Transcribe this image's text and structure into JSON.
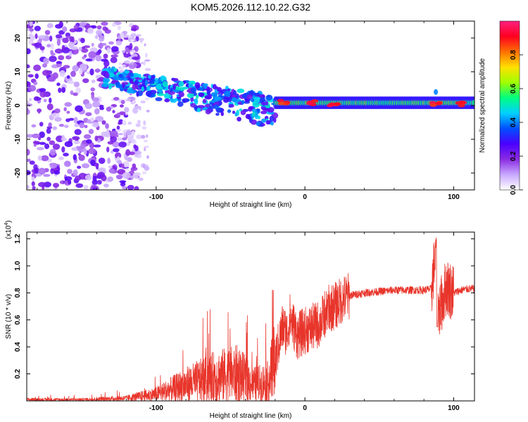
{
  "title": "KOM5.2026.112.10.22.G32",
  "colors": {
    "snr_line": "#e8352b",
    "axis": "#000000",
    "background": "#ffffff"
  },
  "chart_data": [
    {
      "type": "heatmap",
      "name": "spectrogram",
      "xlabel": "Height of straight line (km)",
      "ylabel": "Frequency (Hz)",
      "xlim": [
        -187,
        114
      ],
      "ylim": [
        -25,
        25
      ],
      "x_ticks": [
        -100,
        0,
        100
      ],
      "y_ticks": [
        20,
        10,
        0,
        -10,
        -20
      ],
      "colorbar": {
        "label": "Normalized spectral amplitude",
        "range": [
          0.0,
          1.0
        ],
        "ticks": [
          0.0,
          0.2,
          0.4,
          0.6,
          0.8
        ],
        "tick_labels": [
          "0.0",
          "0.2",
          "0.4",
          "0.6",
          "0.8"
        ],
        "colormap": [
          "#ffffff",
          "#c8a8ff",
          "#8a2be2",
          "#4a00ff",
          "#0050ff",
          "#00d0ff",
          "#00ff80",
          "#a0ff00",
          "#ffe000",
          "#ff7000",
          "#ff0020",
          "#ff2080"
        ]
      },
      "features": [
        {
          "description": "scattered noise",
          "x_range": [
            -187,
            -120
          ],
          "freq_range": [
            -25,
            25
          ],
          "amplitude": 0.1
        },
        {
          "description": "descending meteor head trail",
          "x_range": [
            -135,
            -20
          ],
          "freq_range": [
            -5,
            13
          ],
          "amplitude": 0.35
        },
        {
          "description": "steady echo near 0 Hz",
          "x_range": [
            -20,
            114
          ],
          "freq_center": 0.8,
          "amplitude": 0.55
        },
        {
          "description": "bright spots",
          "x_points": [
            -15,
            5,
            20,
            88,
            104
          ],
          "amplitude": 0.95
        }
      ]
    },
    {
      "type": "line",
      "name": "snr",
      "xlabel": "Height of straight line (km)",
      "ylabel": "SNR (10 * v/v)",
      "y_multiplier_label": "(x10",
      "y_multiplier_exp": "4",
      "y_multiplier_close": ")",
      "xlim": [
        -187,
        114
      ],
      "ylim": [
        0,
        1.25
      ],
      "x_ticks": [
        -100,
        0,
        100
      ],
      "y_ticks": [
        0.2,
        0.4,
        0.6,
        0.8,
        1.0,
        1.2
      ],
      "series": [
        {
          "name": "SNR",
          "x": [
            -187,
            -150,
            -120,
            -100,
            -80,
            -60,
            -45,
            -35,
            -25,
            -20,
            -15,
            -12,
            -10,
            -5,
            0,
            10,
            15,
            20,
            25,
            30,
            40,
            50,
            60,
            70,
            80,
            85,
            88,
            90,
            95,
            100,
            105,
            110,
            114
          ],
          "y": [
            0.01,
            0.01,
            0.02,
            0.05,
            0.12,
            0.18,
            0.2,
            0.12,
            0.14,
            0.3,
            0.55,
            0.5,
            0.62,
            0.48,
            0.52,
            0.57,
            0.68,
            0.7,
            0.75,
            0.78,
            0.8,
            0.81,
            0.82,
            0.82,
            0.82,
            0.83,
            1.1,
            0.65,
            0.85,
            0.8,
            0.82,
            0.83,
            0.83
          ]
        }
      ]
    }
  ]
}
